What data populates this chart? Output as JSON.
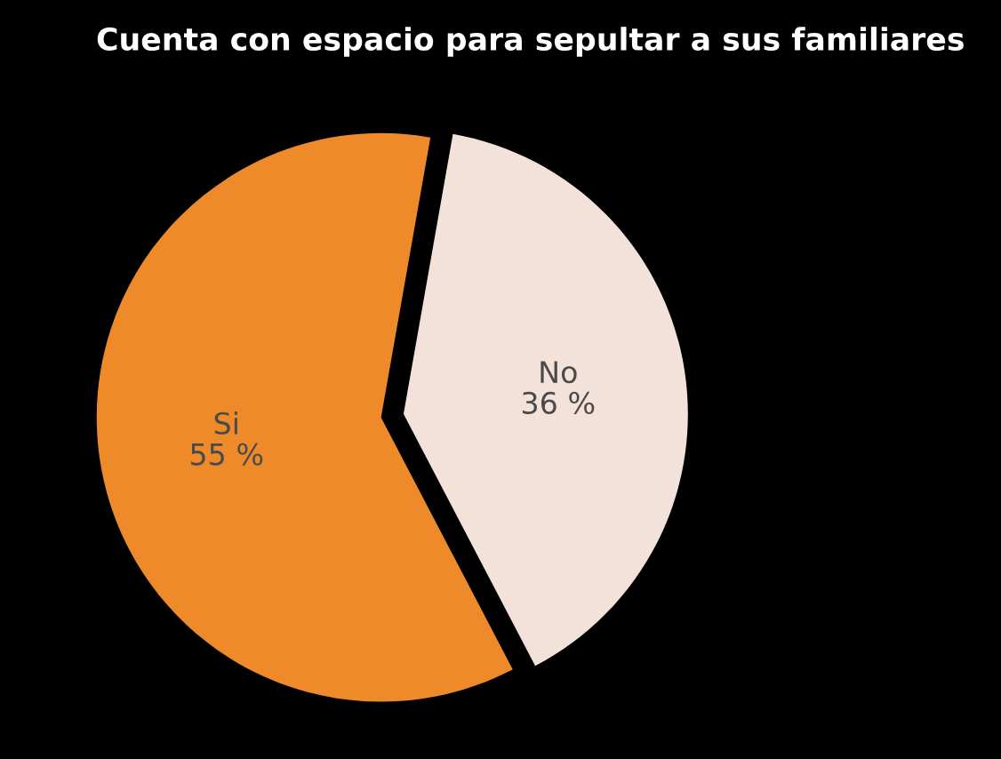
{
  "chart_data": {
    "type": "pie",
    "title": "Cuenta con espacio para sepultar a sus familiares",
    "categories": [
      "Si",
      "No"
    ],
    "values": [
      55,
      36
    ],
    "colors": [
      "#ee8a2a",
      "#f3e2da"
    ],
    "value_labels": [
      "55 %",
      "36 %"
    ]
  }
}
